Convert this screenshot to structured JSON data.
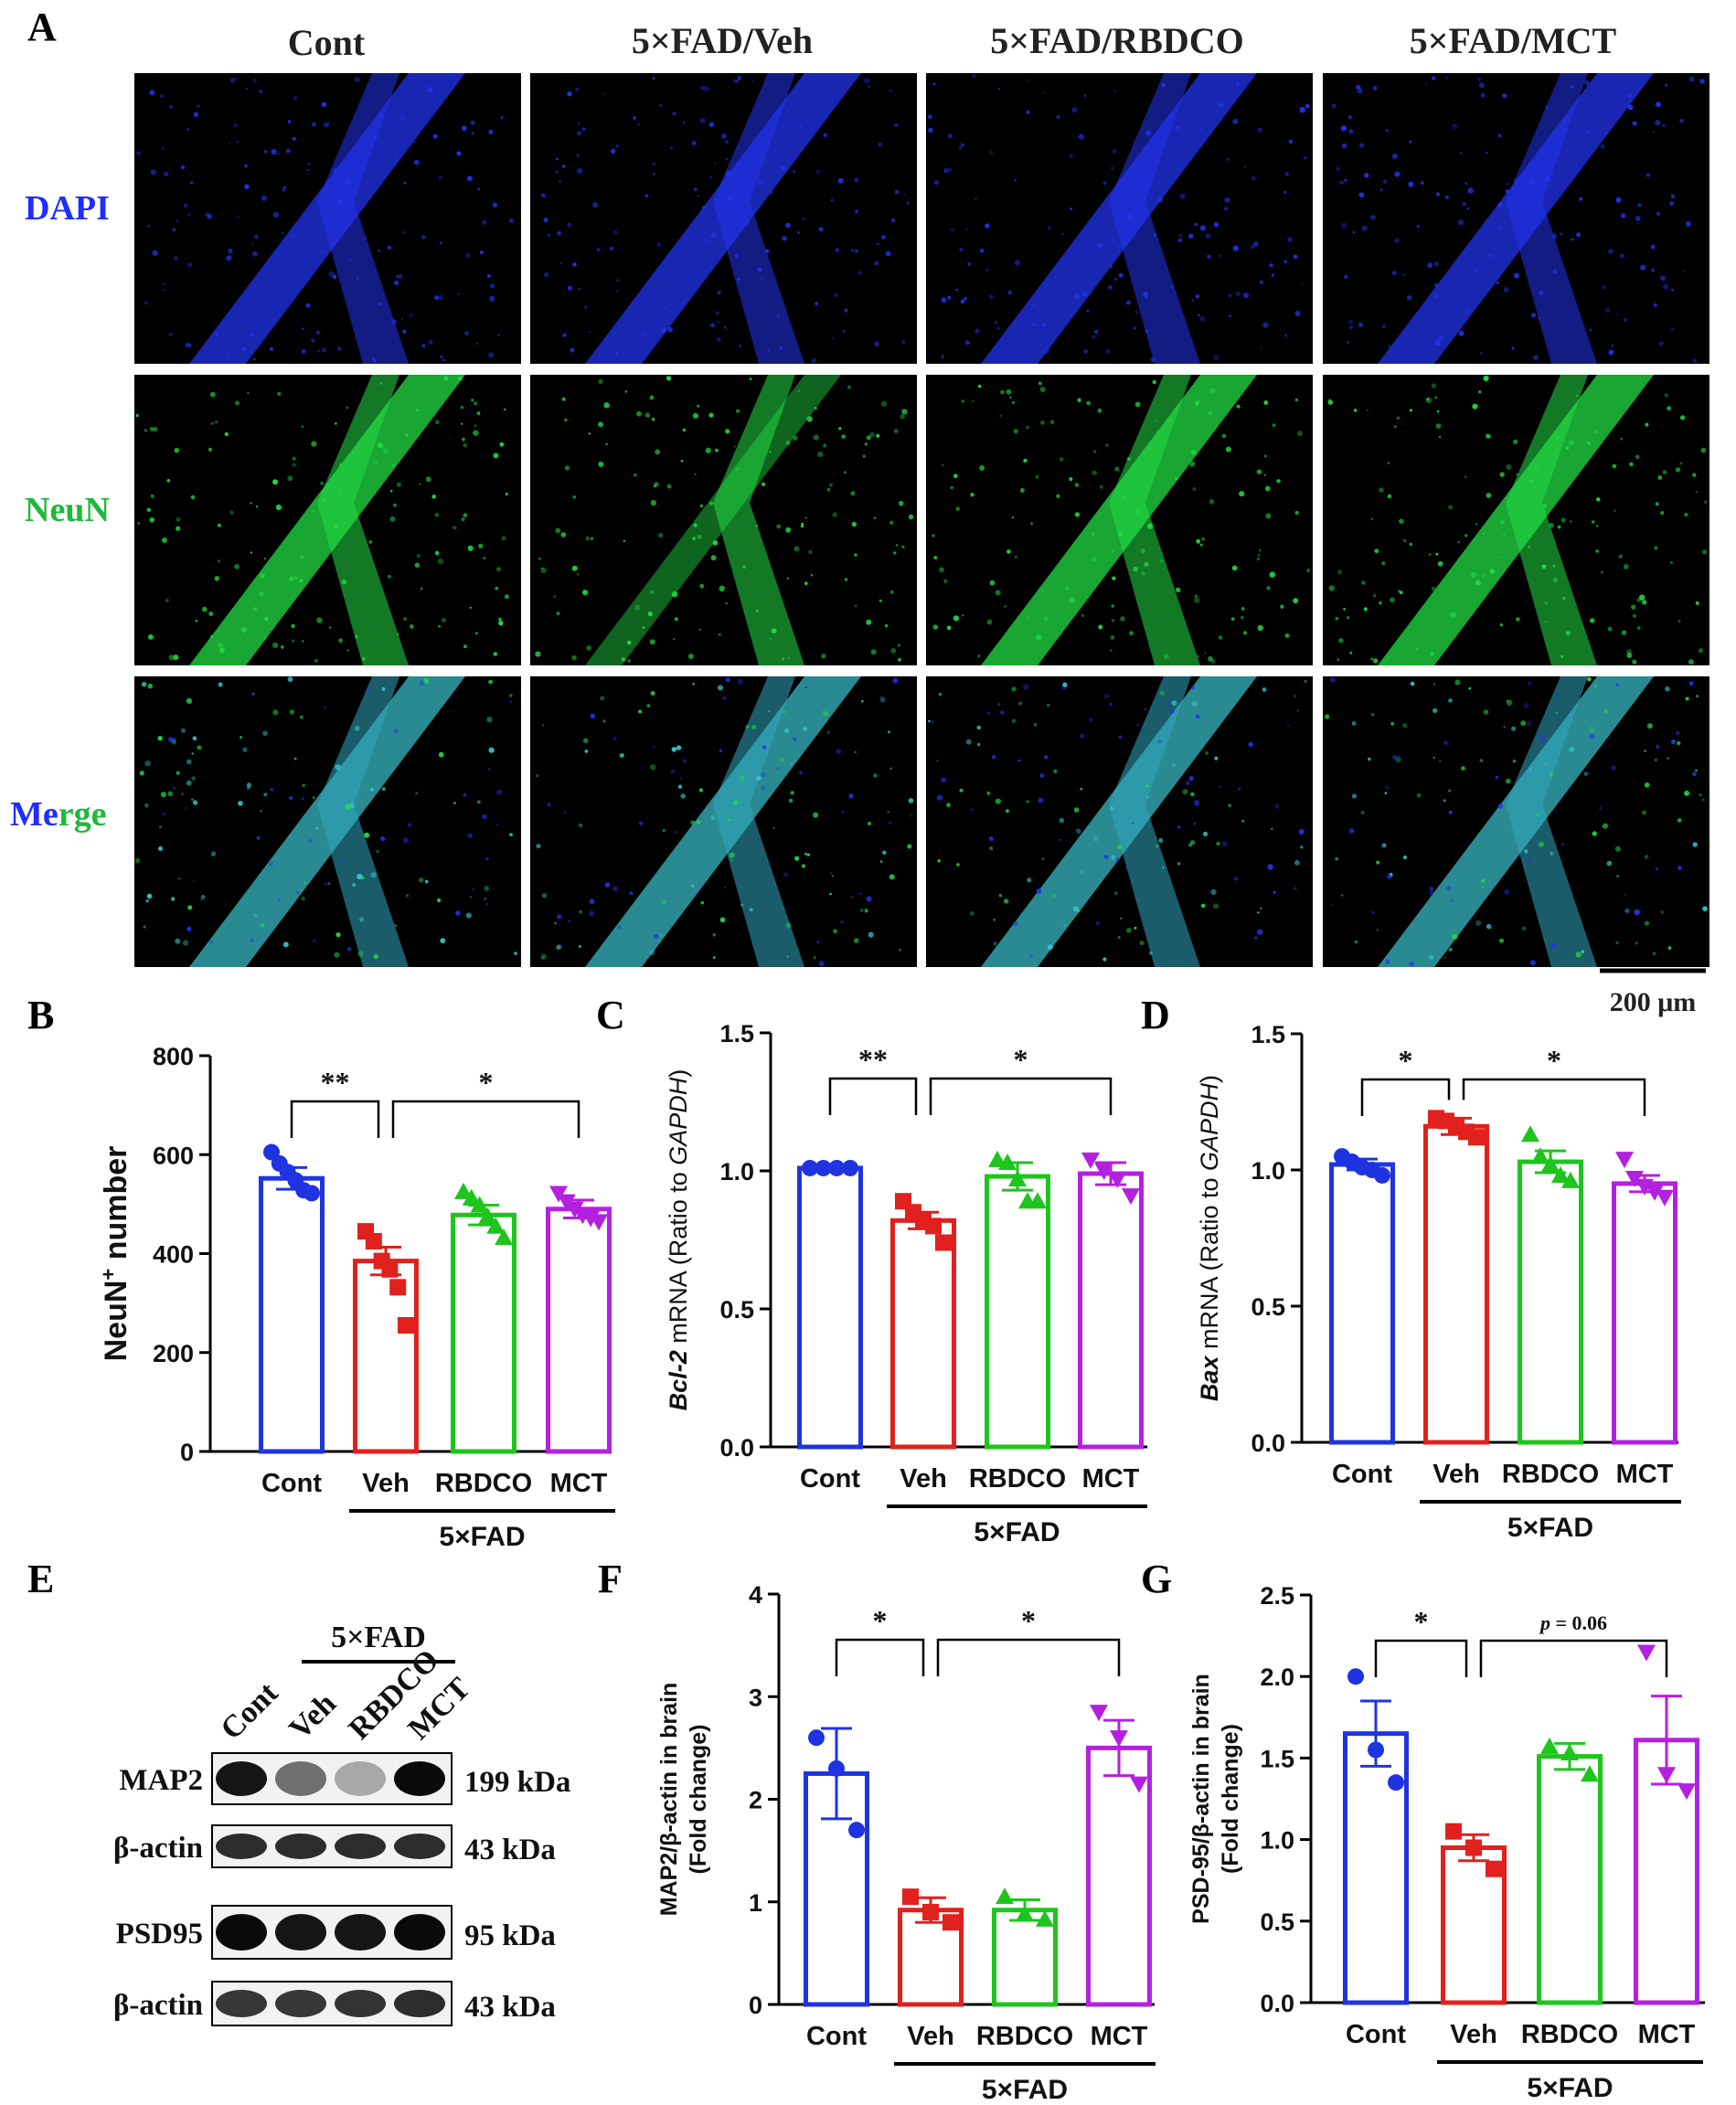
{
  "panel_letters": [
    "A",
    "B",
    "C",
    "D",
    "E",
    "F",
    "G"
  ],
  "micrographs": {
    "columns": [
      "Cont",
      "5×FAD/Veh",
      "5×FAD/RBDCO",
      "5×FAD/MCT"
    ],
    "row_label_dapi": "DAPI",
    "row_label_neun": "NeuN",
    "row_label_merge_a": "Me",
    "row_label_merge_b": "rge",
    "scale_bar": "200 μm",
    "colors": {
      "dapi": "#1f2cff",
      "neun": "#1fb83c",
      "merge_a": "#1f2cff",
      "merge_b": "#1fb83c"
    }
  },
  "group_colors": [
    "#1f34e0",
    "#e0211d",
    "#1ec51c",
    "#b420e0"
  ],
  "chart_data": [
    {
      "panel": "B",
      "type": "bar",
      "categories": [
        "Cont",
        "Veh",
        "RBDCO",
        "MCT"
      ],
      "group_label": "5×FAD",
      "ylabel_main": "NeuN",
      "ylabel_sup": "+",
      "ylabel_tail": " number",
      "ylim": [
        0,
        800
      ],
      "yticks": [
        "0",
        "200",
        "400",
        "600",
        "800"
      ],
      "values": [
        552,
        385,
        478,
        490
      ],
      "sem": [
        22,
        28,
        20,
        18
      ],
      "points": [
        [
          605,
          582,
          565,
          548,
          528,
          522
        ],
        [
          445,
          425,
          385,
          368,
          332,
          255
        ],
        [
          525,
          512,
          498,
          475,
          455,
          432
        ],
        [
          522,
          505,
          490,
          478,
          472,
          465
        ]
      ],
      "markers": [
        "circle",
        "square",
        "triangle",
        "triangle-down"
      ],
      "sig": [
        {
          "label": "**",
          "from": 0,
          "to": 1
        },
        {
          "label": "*",
          "from": 1,
          "to": 3
        }
      ]
    },
    {
      "panel": "C",
      "type": "bar",
      "categories": [
        "Cont",
        "Veh",
        "RBDCO",
        "MCT"
      ],
      "group_label": "5×FAD",
      "ylabel_gene": "Bcl-2",
      "ylabel_mid": " mRNA (Ratio to ",
      "ylabel_ref": "GAPDH",
      "ylabel_end": ")",
      "ylim": [
        0,
        1.5
      ],
      "yticks": [
        "0.0",
        "0.5",
        "1.0",
        "1.5"
      ],
      "values": [
        1.01,
        0.82,
        0.98,
        0.99
      ],
      "sem": [
        0.01,
        0.03,
        0.05,
        0.04
      ],
      "points": [
        [
          1.01,
          1.01,
          1.01,
          1.01
        ],
        [
          0.89,
          0.85,
          0.82,
          0.8,
          0.74
        ],
        [
          1.04,
          1.03,
          0.97,
          0.89,
          0.89
        ],
        [
          1.04,
          1.0,
          0.97,
          0.91
        ]
      ],
      "markers": [
        "circle",
        "square",
        "triangle",
        "triangle-down"
      ],
      "sig": [
        {
          "label": "**",
          "from": 0,
          "to": 1
        },
        {
          "label": "*",
          "from": 1,
          "to": 3
        }
      ]
    },
    {
      "panel": "D",
      "type": "bar",
      "categories": [
        "Cont",
        "Veh",
        "RBDCO",
        "MCT"
      ],
      "group_label": "5×FAD",
      "ylabel_gene": "Bax",
      "ylabel_mid": " mRNA (Ratio to ",
      "ylabel_ref": "GAPDH",
      "ylabel_end": ")",
      "ylim": [
        0,
        1.5
      ],
      "yticks": [
        "0.0",
        "0.5",
        "1.0",
        "1.5"
      ],
      "values": [
        1.02,
        1.16,
        1.03,
        0.95
      ],
      "sem": [
        0.02,
        0.03,
        0.04,
        0.03
      ],
      "points": [
        [
          1.05,
          1.03,
          1.01,
          1.0,
          0.98
        ],
        [
          1.19,
          1.18,
          1.16,
          1.14,
          1.12
        ],
        [
          1.13,
          1.05,
          1.02,
          0.98,
          0.96
        ],
        [
          1.04,
          0.97,
          0.94,
          0.92,
          0.9
        ]
      ],
      "markers": [
        "circle",
        "square",
        "triangle",
        "triangle-down"
      ],
      "sig": [
        {
          "label": "*",
          "from": 0,
          "to": 1
        },
        {
          "label": "*",
          "from": 1,
          "to": 3
        }
      ]
    },
    {
      "panel": "F",
      "type": "bar",
      "categories": [
        "Cont",
        "Veh",
        "RBDCO",
        "MCT"
      ],
      "group_label": "5×FAD",
      "ylabel_line1": "MAP2/β-actin in brain",
      "ylabel_line2": "(Fold change)",
      "ylim": [
        0,
        4
      ],
      "yticks": [
        "0",
        "1",
        "2",
        "3",
        "4"
      ],
      "values": [
        2.25,
        0.92,
        0.92,
        2.5
      ],
      "sem": [
        0.44,
        0.12,
        0.1,
        0.27
      ],
      "points": [
        [
          2.6,
          2.3,
          1.7
        ],
        [
          1.05,
          0.9,
          0.8
        ],
        [
          1.05,
          0.88,
          0.83
        ],
        [
          2.85,
          2.6,
          2.15
        ]
      ],
      "markers": [
        "circle",
        "square",
        "triangle",
        "triangle-down"
      ],
      "sig": [
        {
          "label": "*",
          "from": 0,
          "to": 1
        },
        {
          "label": "*",
          "from": 1,
          "to": 3
        }
      ]
    },
    {
      "panel": "G",
      "type": "bar",
      "categories": [
        "Cont",
        "Veh",
        "RBDCO",
        "MCT"
      ],
      "group_label": "5×FAD",
      "ylabel_line1": "PSD-95/β-actin in brain",
      "ylabel_line2": "(Fold change)",
      "ylim": [
        0,
        2.5
      ],
      "yticks": [
        "0.0",
        "0.5",
        "1.0",
        "1.5",
        "2.0",
        "2.5"
      ],
      "values": [
        1.65,
        0.95,
        1.51,
        1.61
      ],
      "sem": [
        0.2,
        0.08,
        0.08,
        0.27
      ],
      "points": [
        [
          2.0,
          1.55,
          1.35
        ],
        [
          1.05,
          0.95,
          0.82
        ],
        [
          1.57,
          1.53,
          1.4
        ],
        [
          2.15,
          1.4,
          1.3
        ]
      ],
      "markers": [
        "circle",
        "square",
        "triangle",
        "triangle-down"
      ],
      "sig": [
        {
          "label": "*",
          "from": 0,
          "to": 1
        },
        {
          "label": "p = 0.06",
          "from": 1,
          "to": 3,
          "italic_p": true
        }
      ]
    }
  ],
  "western": {
    "group_label": "5×FAD",
    "lanes": [
      "Cont",
      "Veh",
      "RBDCO",
      "MCT"
    ],
    "blots": [
      {
        "name": "MAP2",
        "kda": "199 kDa",
        "intensity": [
          0.95,
          0.55,
          0.3,
          1.0
        ]
      },
      {
        "name": "β-actin",
        "kda": "43 kDa",
        "intensity": [
          0.85,
          0.85,
          0.85,
          0.85
        ]
      },
      {
        "name": "PSD95",
        "kda": "95 kDa",
        "intensity": [
          1.0,
          0.95,
          0.95,
          1.0
        ]
      },
      {
        "name": "β-actin",
        "kda": "43 kDa",
        "intensity": [
          0.8,
          0.8,
          0.82,
          0.85
        ]
      }
    ]
  }
}
